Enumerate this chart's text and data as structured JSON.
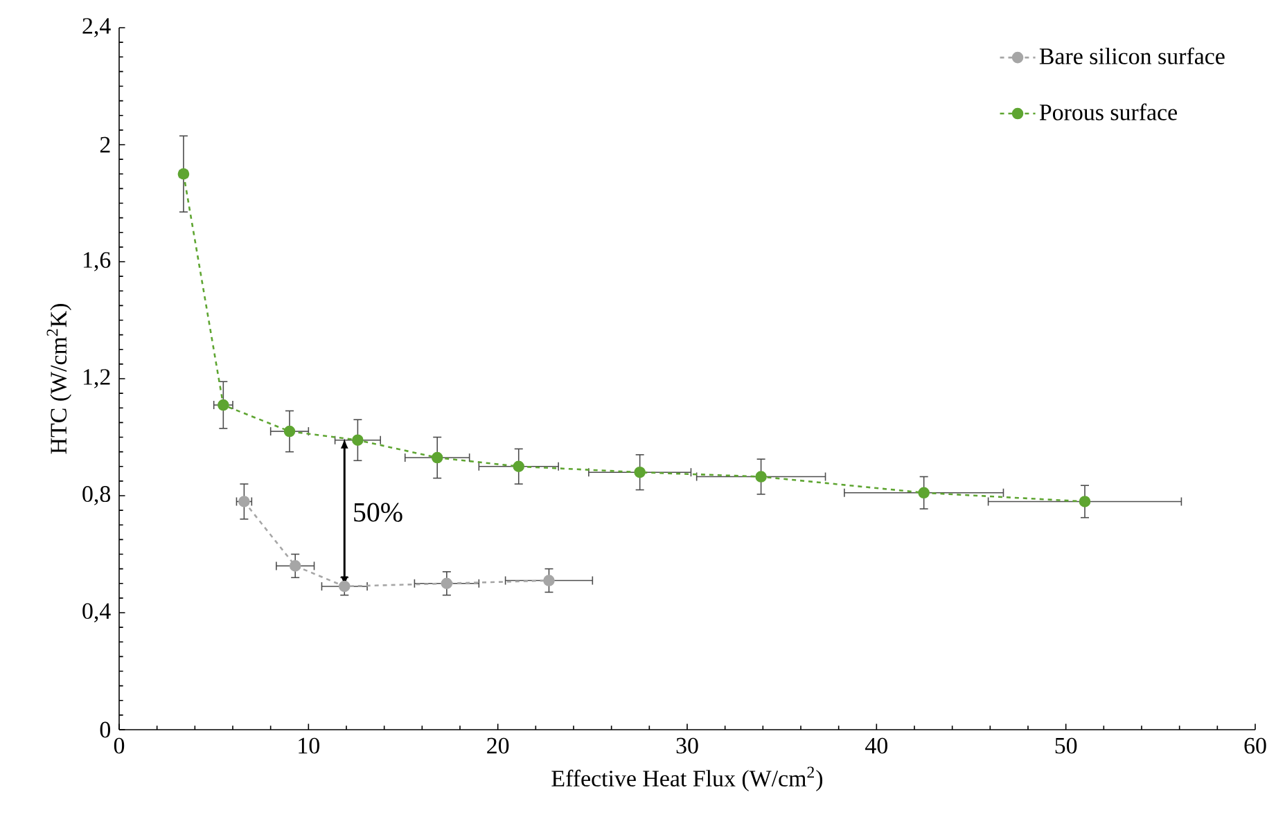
{
  "chart_data": {
    "type": "line",
    "xlabel": "Effective Heat Flux (W/cm$^{2}$)",
    "ylabel": "HTC (W/cm$^{2}$K)",
    "xlim": [
      0,
      60
    ],
    "ylim": [
      0,
      2.4
    ],
    "xticks": [
      0,
      10,
      20,
      30,
      40,
      50,
      60
    ],
    "yticks": [
      0,
      {
        "value": 0.4,
        "label": "0,4"
      },
      {
        "value": 0.8,
        "label": "0,8"
      },
      {
        "value": 1.2,
        "label": "1,2"
      },
      {
        "value": 1.6,
        "label": "1,6"
      },
      2,
      {
        "value": 2.4,
        "label": "2,4"
      }
    ],
    "grid": false,
    "legend": "top right",
    "marker": "circle",
    "line_style": "dashed",
    "annotations": [
      "50%"
    ],
    "series": [
      {
        "name": "Bare silicon surface",
        "color": "#a6a6a6",
        "x": [
          6.6,
          9.3,
          11.9,
          17.3,
          22.7
        ],
        "values": [
          0.78,
          0.56,
          0.49,
          0.5,
          0.51
        ],
        "errors": [
          0.06,
          0.04,
          0.03,
          0.04,
          0.04
        ],
        "xerrors": [
          0.4,
          1.0,
          1.2,
          1.7,
          2.3
        ]
      },
      {
        "name": "Porous surface",
        "color": "#5ea531",
        "x": [
          3.4,
          5.5,
          9.0,
          12.6,
          16.8,
          21.1,
          27.5,
          33.9,
          42.5,
          51.0
        ],
        "values": [
          1.9,
          1.11,
          1.02,
          0.99,
          0.93,
          0.9,
          0.88,
          0.865,
          0.81,
          0.78
        ],
        "errors": [
          0.13,
          0.08,
          0.07,
          0.07,
          0.07,
          0.06,
          0.06,
          0.06,
          0.055,
          0.055
        ],
        "xerrors": [
          0.2,
          0.5,
          1.0,
          1.2,
          1.7,
          2.1,
          2.7,
          3.4,
          4.2,
          5.1
        ]
      }
    ]
  }
}
